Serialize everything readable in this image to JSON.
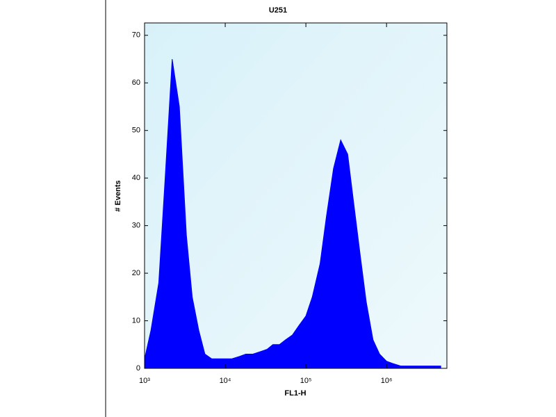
{
  "chart_data": {
    "type": "area",
    "title": "U251",
    "xlabel": "FL1-H",
    "ylabel": "# Events",
    "x": [
      1000,
      1200,
      1500,
      1800,
      2200,
      2700,
      3300,
      3900,
      4700,
      5600,
      6800,
      8200,
      10000,
      12000,
      15000,
      18000,
      22000,
      27000,
      33000,
      39000,
      47000,
      56000,
      68000,
      82000,
      100000,
      120000,
      150000,
      180000,
      220000,
      270000,
      330000,
      390000,
      470000,
      560000,
      680000,
      820000,
      1000000,
      1200000,
      1500000,
      1800000,
      2200000,
      2700000,
      3300000,
      3900000,
      4700000
    ],
    "values": [
      2,
      8,
      18,
      40,
      65,
      55,
      28,
      15,
      8,
      3,
      2,
      2,
      2,
      2,
      2.5,
      3,
      3,
      3.5,
      4,
      5,
      5,
      6,
      7,
      9,
      11,
      15,
      22,
      32,
      42,
      48,
      45,
      35,
      24,
      14,
      6,
      3,
      1.5,
      1,
      0.5,
      0.5,
      0.5,
      0.5,
      0.5,
      0.5,
      0.5
    ],
    "color": "#0000ff",
    "xscale": "log",
    "xlim": [
      1000,
      5600000
    ],
    "xticks": [
      {
        "value": 1000,
        "label": "10³"
      },
      {
        "value": 10000,
        "label": "10⁴"
      },
      {
        "value": 100000,
        "label": "10⁵"
      },
      {
        "value": 1000000,
        "label": "10⁶"
      }
    ],
    "ylim": [
      0,
      72.6
    ],
    "yticks": [
      0,
      10,
      20,
      30,
      40,
      50,
      60,
      70
    ]
  }
}
